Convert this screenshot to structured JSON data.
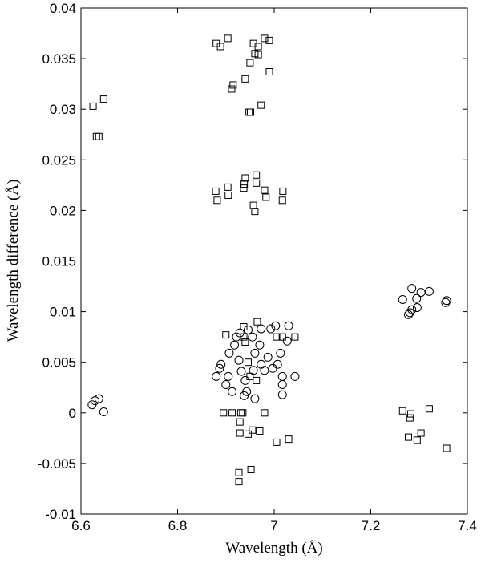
{
  "chart_data": {
    "type": "scatter",
    "xlabel": "Wavelength (Å)",
    "ylabel": "Wavelength difference (Å)",
    "xlim": [
      6.6,
      7.4
    ],
    "xticks": [
      6.6,
      6.8,
      7,
      7.2,
      7.4
    ],
    "ylim": [
      -0.01,
      0.04
    ],
    "yticks": [
      -0.01,
      -0.005,
      0,
      0.005,
      0.01,
      0.015,
      0.02,
      0.025,
      0.03,
      0.035,
      0.04
    ],
    "series": [
      {
        "marker": "square",
        "color": "#000000",
        "x": [
          6.88,
          6.889,
          6.904,
          6.957,
          6.967,
          6.98,
          6.99,
          6.96,
          6.967,
          6.95,
          6.94,
          6.99,
          6.915,
          6.912,
          6.973,
          6.948,
          6.951,
          6.625,
          6.647,
          6.632,
          6.637,
          6.879,
          6.882,
          6.904,
          6.905,
          6.94,
          6.938,
          6.937,
          6.963,
          6.963,
          6.98,
          6.983,
          6.957,
          6.96,
          7.018,
          7.017,
          6.895,
          6.913,
          6.931,
          6.935,
          6.98,
          6.929,
          6.929,
          6.946,
          6.97,
          6.955,
          7.005,
          7.03,
          6.927,
          6.927,
          6.952,
          6.9,
          6.937,
          6.965,
          7.017,
          7.043,
          6.94,
          6.95,
          6.946,
          6.963,
          6.937,
          7.005,
          7.266,
          7.283,
          7.281,
          7.278,
          7.296,
          7.321,
          7.304,
          7.357
        ],
        "values": [
          0.0365,
          0.0362,
          0.037,
          0.0365,
          0.0362,
          0.037,
          0.0368,
          0.0355,
          0.0354,
          0.0346,
          0.033,
          0.0337,
          0.0324,
          0.032,
          0.0304,
          0.0297,
          0.0297,
          0.0303,
          0.031,
          0.0273,
          0.0273,
          0.0219,
          0.021,
          0.0223,
          0.0215,
          0.0232,
          0.0226,
          0.0222,
          0.0235,
          0.0227,
          0.022,
          0.0213,
          0.0205,
          0.0199,
          0.0219,
          0.021,
          0,
          0,
          0,
          0,
          0,
          -0.0009,
          -0.002,
          -0.0021,
          -0.0018,
          -0.0017,
          -0.0029,
          -0.0026,
          -0.0059,
          -0.0068,
          -0.0056,
          0.0077,
          0.0085,
          0.009,
          0.0075,
          0.0075,
          0.007,
          0.0036,
          0.005,
          0.0032,
          0.0075,
          0.0075,
          0.0002,
          -0.0001,
          -0.0005,
          -0.0024,
          -0.0027,
          0.0004,
          -0.002,
          -0.0035
        ]
      },
      {
        "marker": "circle",
        "color": "#000000",
        "x": [
          6.623,
          6.629,
          6.637,
          6.647,
          7.266,
          7.285,
          7.295,
          7.304,
          7.321,
          7.281,
          7.285,
          7.296,
          7.278,
          7.357,
          7.355,
          6.88,
          6.887,
          6.89,
          6.905,
          6.913,
          6.918,
          6.922,
          6.929,
          6.932,
          6.94,
          6.938,
          6.946,
          6.955,
          6.96,
          6.957,
          6.96,
          6.97,
          6.973,
          6.98,
          6.987,
          6.993,
          6.997,
          7.003,
          7.013,
          7.017,
          7.017,
          7.017,
          7.03,
          7.027,
          7.043,
          6.9,
          6.927,
          6.943,
          6.973,
          7.007,
          6.907
        ],
        "values": [
          0.0008,
          0.0012,
          0.0014,
          0.0001,
          0.0112,
          0.0123,
          0.0113,
          0.0119,
          0.012,
          0.0099,
          0.0102,
          0.0104,
          0.0097,
          0.0111,
          0.0109,
          0.0036,
          0.0044,
          0.0048,
          0.0036,
          0.0021,
          0.0067,
          0.0075,
          0.0079,
          0.0041,
          0.0032,
          0.0017,
          0.0082,
          0.0075,
          0.0059,
          0.0042,
          0.0014,
          0.0067,
          0.0048,
          0.0042,
          0.0055,
          0.0083,
          0.0044,
          0.0086,
          0.0059,
          0.0036,
          0.0028,
          0.0018,
          0.0086,
          0.0071,
          0.0036,
          0.0028,
          0.0052,
          0.0021,
          0.0083,
          0.0048,
          0.0059
        ]
      }
    ]
  }
}
